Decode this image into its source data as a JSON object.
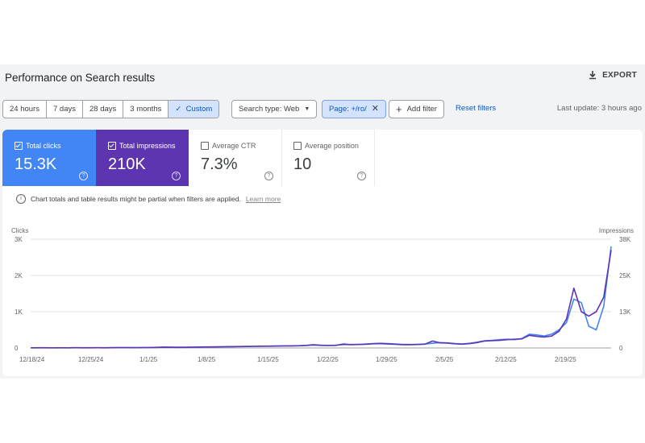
{
  "header": {
    "title": "Performance on Search results",
    "export_label": "EXPORT"
  },
  "toolbar": {
    "date_ranges": [
      "24 hours",
      "7 days",
      "28 days",
      "3 months",
      "Custom"
    ],
    "selected_range": "Custom",
    "search_type": "Search type: Web",
    "page_filter": "Page: +/ro/",
    "add_filter": "Add filter",
    "reset_filters": "Reset filters",
    "last_update": "Last update: 3 hours ago"
  },
  "metrics": [
    {
      "label": "Total clicks",
      "value": "15.3K",
      "checked": true,
      "color": "#4285f4"
    },
    {
      "label": "Total impressions",
      "value": "210K",
      "checked": true,
      "color": "#5e35b1"
    },
    {
      "label": "Average CTR",
      "value": "7.3%",
      "checked": false
    },
    {
      "label": "Average position",
      "value": "10",
      "checked": false
    }
  ],
  "info": {
    "text": "Chart totals and table results might be partial when filters are applied.",
    "link": "Learn more"
  },
  "chart_data": {
    "type": "line",
    "left_axis_label": "Clicks",
    "right_axis_label": "Impressions",
    "left_ticks": [
      "3K",
      "2K",
      "1K",
      "0"
    ],
    "right_ticks": [
      "38K",
      "25K",
      "13K",
      "0"
    ],
    "ylim_left": [
      0,
      3000
    ],
    "ylim_right": [
      0,
      38000
    ],
    "x_ticks": [
      "12/18/24",
      "12/25/24",
      "1/1/25",
      "1/8/25",
      "1/15/25",
      "1/22/25",
      "1/29/25",
      "2/5/25",
      "2/12/25",
      "2/19/25"
    ],
    "grid": true,
    "series": [
      {
        "name": "Clicks",
        "color": "#4285f4",
        "axis": "left",
        "values": [
          5,
          6,
          6,
          5,
          6,
          5,
          7,
          6,
          6,
          7,
          6,
          8,
          10,
          9,
          8,
          12,
          14,
          18,
          25,
          22,
          20,
          22,
          25,
          28,
          30,
          32,
          35,
          38,
          40,
          42,
          45,
          50,
          52,
          55,
          58,
          60,
          62,
          70,
          80,
          75,
          70,
          78,
          90,
          95,
          100,
          110,
          120,
          130,
          120,
          110,
          100,
          95,
          100,
          110,
          130,
          150,
          140,
          120,
          110,
          130,
          160,
          200,
          210,
          230,
          240,
          230,
          260,
          380,
          360,
          330,
          380,
          500,
          700,
          1350,
          1250,
          600,
          500,
          1150,
          2800
        ]
      },
      {
        "name": "Impressions",
        "color": "#5e35b1",
        "axis": "left",
        "values": [
          4,
          5,
          5,
          4,
          5,
          5,
          6,
          5,
          5,
          6,
          5,
          7,
          9,
          8,
          7,
          10,
          12,
          15,
          20,
          18,
          16,
          18,
          22,
          25,
          27,
          30,
          33,
          36,
          38,
          40,
          44,
          48,
          50,
          52,
          55,
          58,
          60,
          66,
          90,
          70,
          66,
          72,
          110,
          90,
          95,
          100,
          115,
          120,
          110,
          100,
          92,
          90,
          95,
          105,
          190,
          140,
          135,
          115,
          105,
          120,
          150,
          190,
          200,
          210,
          230,
          240,
          250,
          350,
          320,
          300,
          330,
          460,
          800,
          1650,
          1000,
          880,
          1000,
          1400,
          2700
        ]
      }
    ]
  }
}
